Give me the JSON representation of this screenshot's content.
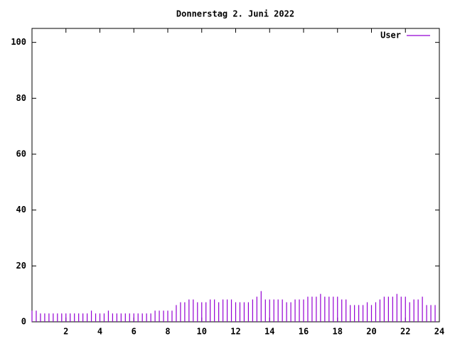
{
  "chart_data": {
    "type": "impulses",
    "title": "Donnerstag 2. Juni 2022",
    "x": [
      0,
      0.25,
      0.5,
      0.75,
      1,
      1.25,
      1.5,
      1.75,
      2,
      2.25,
      2.5,
      2.75,
      3,
      3.25,
      3.5,
      3.75,
      4,
      4.25,
      4.5,
      4.75,
      5,
      5.25,
      5.5,
      5.75,
      6,
      6.25,
      6.5,
      6.75,
      7,
      7.25,
      7.5,
      7.75,
      8,
      8.25,
      8.5,
      8.75,
      9,
      9.25,
      9.5,
      9.75,
      10,
      10.25,
      10.5,
      10.75,
      11,
      11.25,
      11.5,
      11.75,
      12,
      12.25,
      12.5,
      12.75,
      13,
      13.25,
      13.5,
      13.75,
      14,
      14.25,
      14.5,
      14.75,
      15,
      15.25,
      15.5,
      15.75,
      16,
      16.25,
      16.5,
      16.75,
      17,
      17.25,
      17.5,
      17.75,
      18,
      18.25,
      18.5,
      18.75,
      19,
      19.25,
      19.5,
      19.75,
      20,
      20.25,
      20.5,
      20.75,
      21,
      21.25,
      21.5,
      21.75,
      22,
      22.25,
      22.5,
      22.75,
      23,
      23.25,
      23.5,
      23.75
    ],
    "series": [
      {
        "name": "User",
        "color": "#9400d3",
        "values": [
          4,
          4,
          3,
          3,
          3,
          3,
          3,
          3,
          3,
          3,
          3,
          3,
          3,
          3,
          4,
          3,
          3,
          3,
          4,
          3,
          3,
          3,
          3,
          3,
          3,
          3,
          3,
          3,
          3,
          4,
          4,
          4,
          4,
          4,
          6,
          7,
          7,
          8,
          8,
          7,
          7,
          7,
          8,
          8,
          7,
          8,
          8,
          8,
          7,
          7,
          7,
          7,
          8,
          9,
          11,
          8,
          8,
          8,
          8,
          8,
          7,
          7,
          8,
          8,
          8,
          9,
          9,
          9,
          10,
          9,
          9,
          9,
          9,
          8,
          8,
          6,
          6,
          6,
          6,
          7,
          6,
          7,
          8,
          9,
          9,
          9,
          10,
          9,
          9,
          7,
          8,
          8,
          9,
          6,
          6,
          6
        ]
      }
    ],
    "xlim": [
      0,
      24
    ],
    "xticks": [
      2,
      4,
      6,
      8,
      10,
      12,
      14,
      16,
      18,
      20,
      22,
      24
    ],
    "ylim": [
      0,
      105
    ],
    "yticks": [
      0,
      20,
      40,
      60,
      80,
      100
    ],
    "legend": "top-right"
  }
}
